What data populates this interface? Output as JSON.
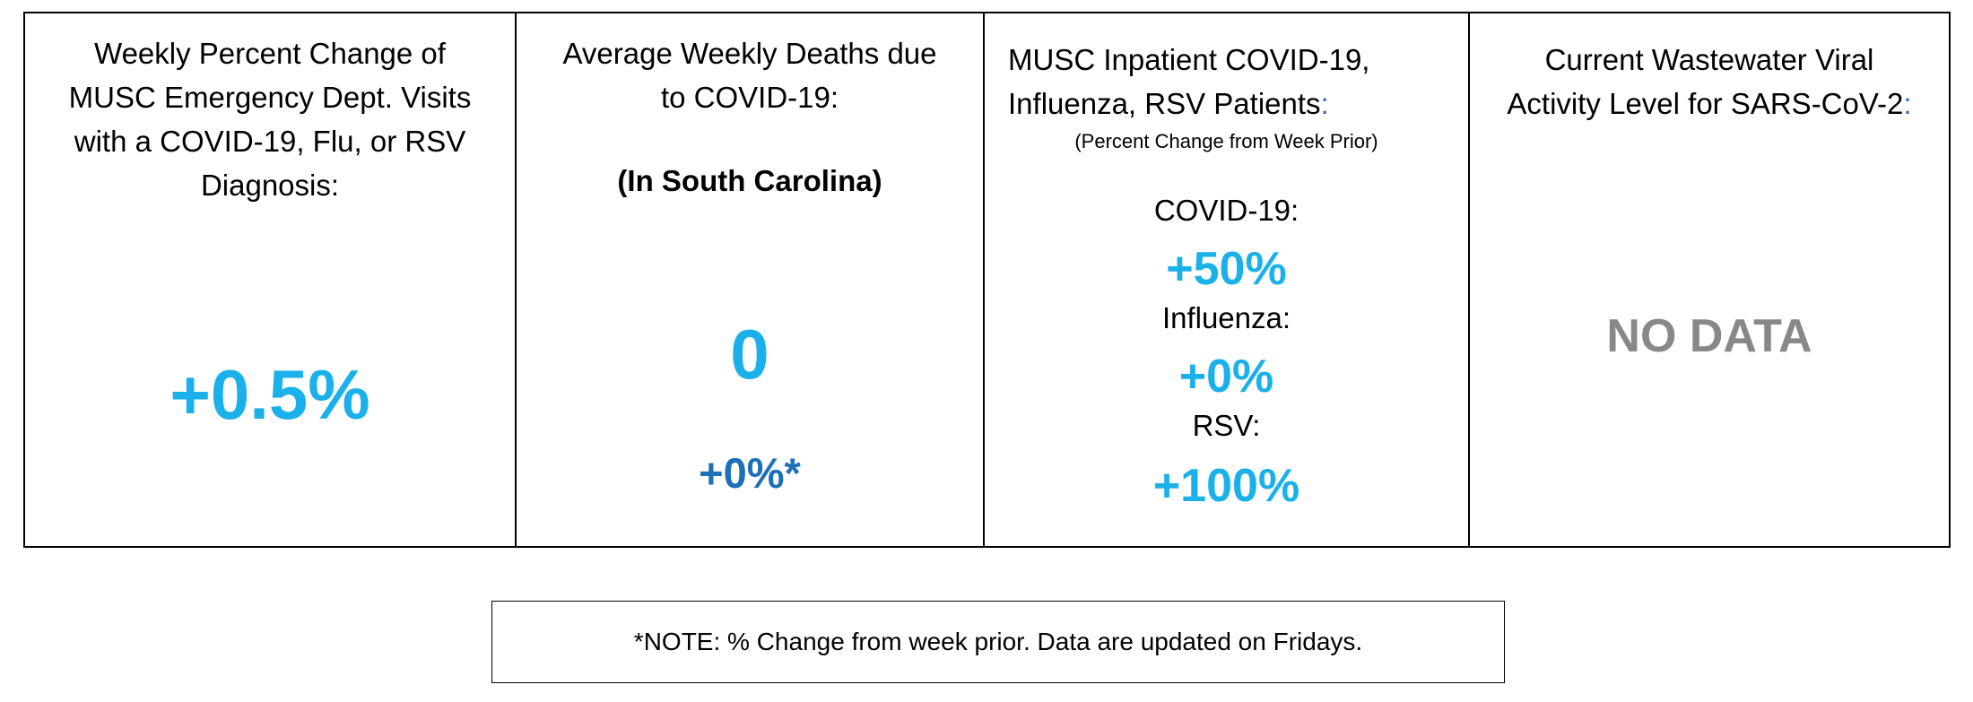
{
  "panels": {
    "ed_visits": {
      "heading": "Weekly Percent Change of\nMUSC Emergency Dept. Visits\nwith a COVID-19, Flu, or RSV\nDiagnosis:",
      "value": "+0.5%"
    },
    "deaths": {
      "heading": "Average Weekly Deaths due\nto COVID-19:",
      "scope": "(In South Carolina)",
      "value": "0",
      "change": "+0%*"
    },
    "inpatient": {
      "heading_line1": "MUSC Inpatient COVID-19,",
      "heading_line2": "Influenza, RSV Patients",
      "heading_colon": ":",
      "subnote": "(Percent Change from Week Prior)",
      "metrics": [
        {
          "label": "COVID-19:",
          "value": "+50%"
        },
        {
          "label": "Influenza:",
          "value": "+0%"
        },
        {
          "label": "RSV:",
          "value": "+100%"
        }
      ]
    },
    "wastewater": {
      "heading_line1": "Current Wastewater Viral",
      "heading_line2": "Activity Level for SARS-CoV-2",
      "heading_colon": ":",
      "value": "NO DATA"
    }
  },
  "footnote": "*NOTE: % Change from week prior.  Data are updated on Fridays.",
  "colors": {
    "value_light_blue": "#1ab0ea",
    "value_dark_blue": "#1d6fb8",
    "no_data_gray": "#888888",
    "colon_blue": "#2f6fb5"
  }
}
